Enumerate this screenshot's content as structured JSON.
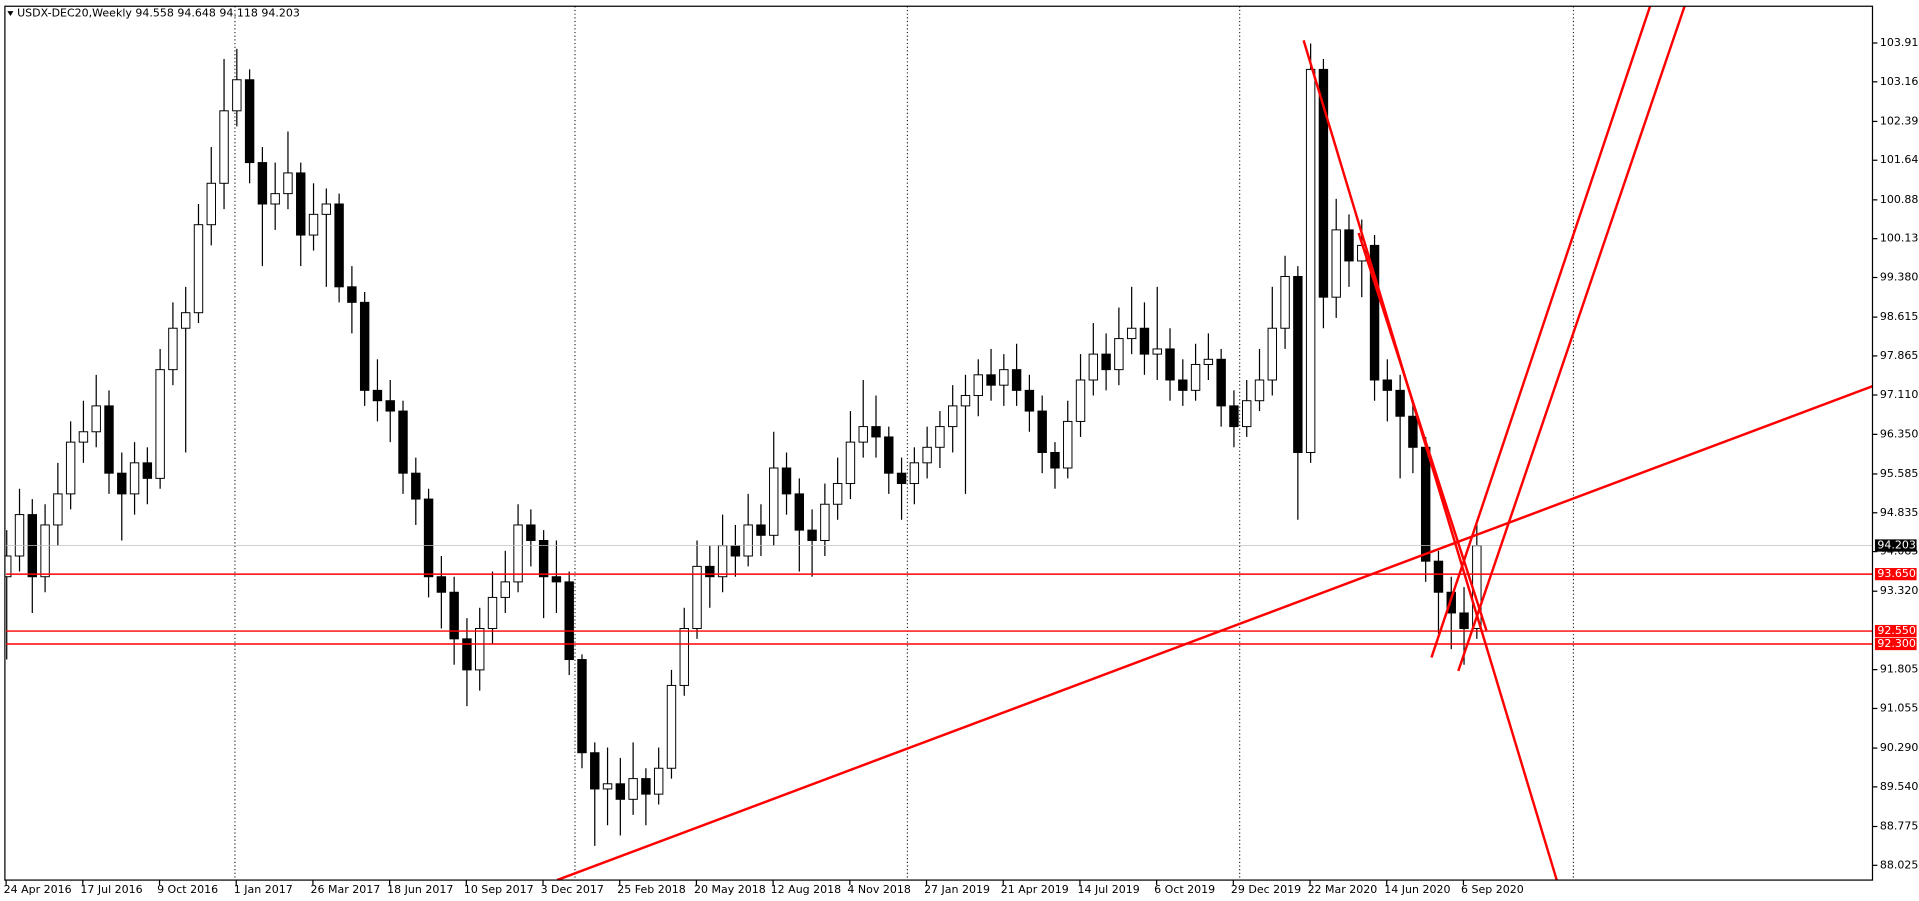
{
  "chart_data": {
    "type": "candlestick",
    "title": "USDX-DEC20,Weekly  94.558 94.648 94.118 94.203",
    "open": [
      93.6,
      94.0,
      94.8,
      93.6,
      94.6,
      95.2,
      96.2,
      96.4,
      96.9,
      95.6,
      95.2,
      95.8,
      95.5,
      97.6,
      98.4,
      98.7,
      100.4,
      101.2,
      102.6,
      103.2,
      101.6,
      100.8,
      101.0,
      101.4,
      100.2,
      100.6,
      100.8,
      99.2,
      98.9,
      97.2,
      97.0,
      96.8,
      95.6,
      95.1,
      93.6,
      93.3,
      92.4,
      91.8,
      92.6,
      93.2,
      93.5,
      94.6,
      94.3,
      93.6,
      93.5,
      92.0,
      90.2,
      89.5,
      89.6,
      89.3,
      89.7,
      89.4,
      89.9,
      91.5,
      92.6,
      93.8,
      93.6,
      94.2,
      94.0,
      94.6,
      94.4,
      95.7,
      95.2,
      94.5,
      94.3,
      95.0,
      95.4,
      96.2,
      96.5,
      96.3,
      95.6,
      95.4,
      95.8,
      96.1,
      96.5,
      96.9,
      97.1,
      97.5,
      97.3,
      97.6,
      97.2,
      96.8,
      96.0,
      95.7,
      96.6,
      97.4,
      97.9,
      97.6,
      98.2,
      98.4,
      97.9,
      98.0,
      97.4,
      97.2,
      97.7,
      97.8,
      96.9,
      96.5,
      97.0,
      97.4,
      98.4,
      99.4,
      96.0,
      103.4,
      99.0,
      100.3,
      99.7,
      100.0,
      97.4,
      97.2,
      96.7,
      96.1,
      93.9,
      93.3,
      92.9,
      92.6
    ],
    "high": [
      94.5,
      95.3,
      95.1,
      95.0,
      95.8,
      96.6,
      97.0,
      97.5,
      97.2,
      96.0,
      96.2,
      96.1,
      98.0,
      98.9,
      99.2,
      100.8,
      101.9,
      103.6,
      103.8,
      103.4,
      101.9,
      101.6,
      102.2,
      101.6,
      101.2,
      101.1,
      101.0,
      99.6,
      99.1,
      97.8,
      97.4,
      97.0,
      95.9,
      95.3,
      94.0,
      93.6,
      92.8,
      93.0,
      93.7,
      94.1,
      95.0,
      94.9,
      94.5,
      94.3,
      93.7,
      92.1,
      90.4,
      90.3,
      90.1,
      90.4,
      89.9,
      90.3,
      91.8,
      93.0,
      94.3,
      94.2,
      94.8,
      94.6,
      95.2,
      95.0,
      96.4,
      96.0,
      95.5,
      94.9,
      95.4,
      95.9,
      96.8,
      97.4,
      97.1,
      96.5,
      95.9,
      96.1,
      96.5,
      96.8,
      97.3,
      97.5,
      97.8,
      98.0,
      97.9,
      98.1,
      97.5,
      97.1,
      96.2,
      97.0,
      97.9,
      98.5,
      98.3,
      98.8,
      99.2,
      98.9,
      99.2,
      98.4,
      97.8,
      98.1,
      98.3,
      98.0,
      97.2,
      97.4,
      98.0,
      99.2,
      99.8,
      99.6,
      103.9,
      103.6,
      100.9,
      100.6,
      100.5,
      100.2,
      97.8,
      97.5,
      97.0,
      96.3,
      94.1,
      93.6,
      93.4,
      94.7
    ],
    "low": [
      92.0,
      93.7,
      92.9,
      93.3,
      94.2,
      94.9,
      95.8,
      96.1,
      95.2,
      94.3,
      94.8,
      95.0,
      95.3,
      97.3,
      96.0,
      98.5,
      100.0,
      100.7,
      102.3,
      101.2,
      99.6,
      100.3,
      100.7,
      99.6,
      99.9,
      99.2,
      98.9,
      98.3,
      96.9,
      96.6,
      96.2,
      95.2,
      94.6,
      93.2,
      92.6,
      91.9,
      91.1,
      91.4,
      92.3,
      92.9,
      93.3,
      93.8,
      92.8,
      92.9,
      91.7,
      89.9,
      88.4,
      88.8,
      88.6,
      89.0,
      88.8,
      89.2,
      89.7,
      91.3,
      92.4,
      93.0,
      93.3,
      93.6,
      93.8,
      94.0,
      94.2,
      94.8,
      93.7,
      93.6,
      94.0,
      94.7,
      95.1,
      95.9,
      95.9,
      95.2,
      94.7,
      95.0,
      95.5,
      95.7,
      96.0,
      95.2,
      96.7,
      97.0,
      96.9,
      96.9,
      96.4,
      95.6,
      95.3,
      95.5,
      96.3,
      97.1,
      97.2,
      97.3,
      97.9,
      97.5,
      97.4,
      97.0,
      96.9,
      97.0,
      97.4,
      96.5,
      96.1,
      96.3,
      96.8,
      97.1,
      98.0,
      94.7,
      95.8,
      98.4,
      98.6,
      99.2,
      99.0,
      97.0,
      96.6,
      95.5,
      95.6,
      93.5,
      92.5,
      92.2,
      91.9,
      92.4
    ],
    "close": [
      94.0,
      94.8,
      93.6,
      94.6,
      95.2,
      96.2,
      96.4,
      96.9,
      95.6,
      95.2,
      95.8,
      95.5,
      97.6,
      98.4,
      98.7,
      100.4,
      101.2,
      102.6,
      103.2,
      101.6,
      100.8,
      101.0,
      101.4,
      100.2,
      100.6,
      100.8,
      99.2,
      98.9,
      97.2,
      97.0,
      96.8,
      95.6,
      95.1,
      93.6,
      93.3,
      92.4,
      91.8,
      92.6,
      93.2,
      93.5,
      94.6,
      94.3,
      93.6,
      93.5,
      92.0,
      90.2,
      89.5,
      89.6,
      89.3,
      89.7,
      89.4,
      89.9,
      91.5,
      92.6,
      93.8,
      93.6,
      94.2,
      94.0,
      94.6,
      94.4,
      95.7,
      95.2,
      94.5,
      94.3,
      95.0,
      95.4,
      96.2,
      96.5,
      96.3,
      95.6,
      95.4,
      95.8,
      96.1,
      96.5,
      96.9,
      97.1,
      97.5,
      97.3,
      97.6,
      97.2,
      96.8,
      96.0,
      95.7,
      96.6,
      97.4,
      97.9,
      97.6,
      98.2,
      98.4,
      97.9,
      98.0,
      97.4,
      97.2,
      97.7,
      97.8,
      96.9,
      96.5,
      97.0,
      97.4,
      98.4,
      99.4,
      96.0,
      103.4,
      99.0,
      100.3,
      99.7,
      100.0,
      97.4,
      97.2,
      96.7,
      96.1,
      93.9,
      93.3,
      92.9,
      92.6,
      94.2
    ],
    "up_color": "#ffffff",
    "down_color": "#000000",
    "wick_color": "#000000",
    "xlim": [
      0,
      146
    ],
    "xticks": [
      {
        "value": 0,
        "label": "24 Apr 2016"
      },
      {
        "value": 6,
        "label": "17 Jul 2016"
      },
      {
        "value": 12,
        "label": "9 Oct 2016"
      },
      {
        "value": 18,
        "label": "1 Jan 2017"
      },
      {
        "value": 24,
        "label": "26 Mar 2017"
      },
      {
        "value": 30,
        "label": "18 Jun 2017"
      },
      {
        "value": 36,
        "label": "10 Sep 2017"
      },
      {
        "value": 42,
        "label": "3 Dec 2017"
      },
      {
        "value": 48,
        "label": "25 Feb 2018"
      },
      {
        "value": 54,
        "label": "20 May 2018"
      },
      {
        "value": 60,
        "label": "12 Aug 2018"
      },
      {
        "value": 66,
        "label": "4 Nov 2018"
      },
      {
        "value": 72,
        "label": "27 Jan 2019"
      },
      {
        "value": 78,
        "label": "21 Apr 2019"
      },
      {
        "value": 84,
        "label": "14 Jul 2019"
      },
      {
        "value": 90,
        "label": "6 Oct 2019"
      },
      {
        "value": 96,
        "label": "29 Dec 2019"
      },
      {
        "value": 102,
        "label": "22 Mar 2020"
      },
      {
        "value": 108,
        "label": "14 Jun 2020"
      },
      {
        "value": 114,
        "label": "6 Sep 2020"
      }
    ],
    "period_separators": [
      17.9,
      44.5,
      70.5,
      96.5,
      122.6
    ],
    "ylim": [
      87.74,
      104.62
    ],
    "yticks": [
      {
        "value": 103.91,
        "label": "103.910"
      },
      {
        "value": 103.16,
        "label": "103.160"
      },
      102.395,
      101.645,
      {
        "value": 100.88,
        "label": "100.880"
      },
      {
        "value": 100.13,
        "label": "100.130"
      },
      {
        "value": 99.38,
        "label": "99.380"
      },
      98.615,
      97.865,
      {
        "value": 97.11,
        "label": "97.110"
      },
      {
        "value": 96.35,
        "label": "96.350"
      },
      95.585,
      94.835,
      94.085,
      {
        "value": 93.32,
        "label": "93.320"
      },
      91.805,
      91.055,
      {
        "value": 90.29,
        "label": "90.290"
      },
      {
        "value": 89.54,
        "label": "89.540"
      },
      88.775,
      88.025
    ],
    "price_lines": [
      {
        "value": 94.203,
        "color": "#c0c0c0",
        "box": "#000000"
      },
      {
        "value": 93.65,
        "label": "93.650",
        "color": "#ff0000",
        "box": "#ff0000"
      },
      {
        "value": 92.55,
        "label": "92.550",
        "color": "#ff0000",
        "box": "#ff0000"
      },
      {
        "value": 92.3,
        "label": "92.300",
        "color": "#ff0000",
        "box": "#ff0000"
      }
    ],
    "trendline_color": "#ff0000",
    "trendlines": [
      {
        "x": [
          43.1,
          146.1
        ],
        "y": [
          87.74,
          97.29
        ]
      },
      {
        "x": [
          101.5,
          121.3
        ],
        "y": [
          103.96,
          87.74
        ]
      },
      {
        "x": [
          105.8,
          115.8
        ],
        "y": [
          100.24,
          92.56
        ]
      },
      {
        "x": [
          111.5,
          128.6
        ],
        "y": [
          92.04,
          104.62
        ]
      },
      {
        "x": [
          113.6,
          131.3
        ],
        "y": [
          91.78,
          104.62
        ]
      }
    ]
  }
}
